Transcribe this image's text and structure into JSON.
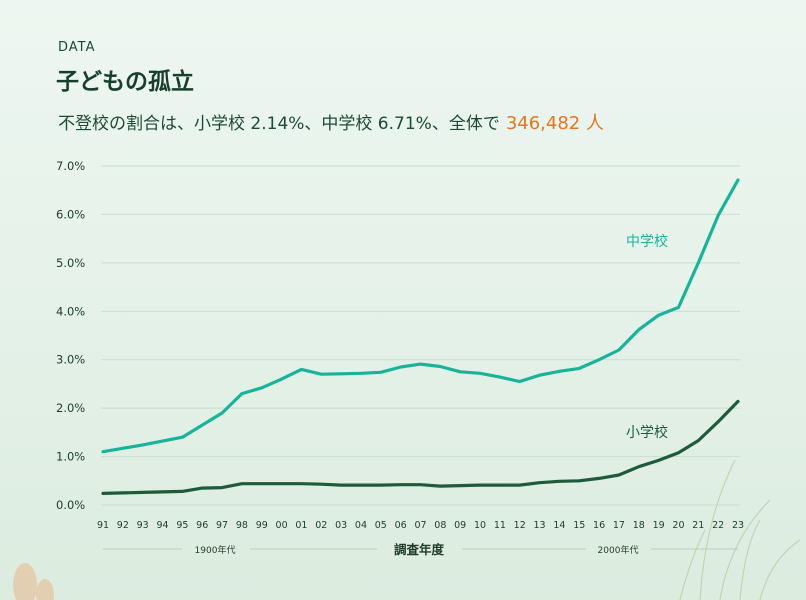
{
  "header": {
    "kicker": "DATA",
    "title": "子どもの孤立",
    "subtitle": "不登校の割合は、小学校 2.14%、中学校 6.71%、全体で",
    "highlight": "346,482 人"
  },
  "colors": {
    "middle_school": "#19b39a",
    "elementary": "#1f5a3c",
    "highlight": "#e5751e",
    "grid": "#c9ddd0"
  },
  "chart_data": {
    "type": "line",
    "x": [
      "91",
      "92",
      "93",
      "94",
      "95",
      "96",
      "97",
      "98",
      "99",
      "00",
      "01",
      "02",
      "03",
      "04",
      "05",
      "06",
      "07",
      "08",
      "09",
      "10",
      "11",
      "12",
      "13",
      "14",
      "15",
      "16",
      "17",
      "18",
      "19",
      "20",
      "21",
      "22",
      "23"
    ],
    "y_ticks": [
      "0.0%",
      "1.0%",
      "2.0%",
      "3.0%",
      "4.0%",
      "5.0%",
      "6.0%",
      "7.0%"
    ],
    "ylim": [
      0,
      7
    ],
    "xlabel": "調査年度",
    "era_labels": [
      "1900年代",
      "2000年代"
    ],
    "series": [
      {
        "name": "中学校",
        "values": [
          1.1,
          1.17,
          1.24,
          1.32,
          1.4,
          1.65,
          1.9,
          2.3,
          2.42,
          2.6,
          2.8,
          2.7,
          2.71,
          2.72,
          2.74,
          2.85,
          2.91,
          2.86,
          2.75,
          2.72,
          2.64,
          2.55,
          2.68,
          2.76,
          2.82,
          3.0,
          3.2,
          3.62,
          3.92,
          4.08,
          5.0,
          5.98,
          6.71
        ]
      },
      {
        "name": "小学校",
        "values": [
          0.24,
          0.25,
          0.26,
          0.27,
          0.28,
          0.35,
          0.36,
          0.44,
          0.44,
          0.44,
          0.44,
          0.43,
          0.41,
          0.41,
          0.41,
          0.42,
          0.42,
          0.39,
          0.4,
          0.41,
          0.41,
          0.41,
          0.46,
          0.49,
          0.5,
          0.55,
          0.62,
          0.79,
          0.92,
          1.08,
          1.33,
          1.72,
          2.14
        ]
      }
    ]
  }
}
